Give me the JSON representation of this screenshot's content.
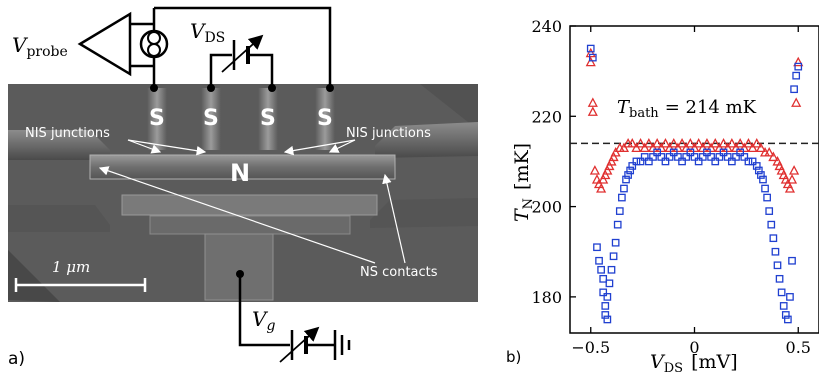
{
  "panel_a": {
    "label": "a)",
    "probe_label_main": "V",
    "probe_label_sub": "probe",
    "vds_label_main": "V",
    "vds_label_sub": "DS",
    "vg_label_main": "V",
    "vg_label_sub": "g",
    "contact_label": "S",
    "island_label": "N",
    "nis_left": "NIS junctions",
    "nis_right": "NIS junctions",
    "ns_contacts": "NS contacts",
    "scale_bar": "1 μm"
  },
  "panel_b": {
    "label": "b)",
    "annotation_main": "T",
    "annotation_sub": "bath",
    "annotation_value": "= 214 mK"
  },
  "chart_data": {
    "type": "scatter",
    "xlabel": "V_DS [mV]",
    "ylabel": "T_N [mK]",
    "xlim": [
      -0.6,
      0.6
    ],
    "ylim": [
      172,
      240
    ],
    "x_ticks": [
      -0.5,
      0,
      0.5
    ],
    "x_tick_labels": [
      "−0.5",
      "0",
      "0.5"
    ],
    "y_ticks": [
      180,
      200,
      220,
      240
    ],
    "y_tick_labels": [
      "180",
      "200",
      "220",
      "240"
    ],
    "reference_line": {
      "value": 214,
      "style": "dashed",
      "color": "#222222"
    },
    "series": [
      {
        "marker": "triangle",
        "color": "#e03030",
        "points": [
          [
            -0.5,
            234
          ],
          [
            -0.5,
            232
          ],
          [
            -0.49,
            223
          ],
          [
            -0.49,
            221
          ],
          [
            -0.48,
            208
          ],
          [
            -0.47,
            206
          ],
          [
            -0.46,
            205
          ],
          [
            -0.45,
            204
          ],
          [
            -0.44,
            206
          ],
          [
            -0.43,
            207
          ],
          [
            -0.42,
            208
          ],
          [
            -0.41,
            209
          ],
          [
            -0.4,
            210
          ],
          [
            -0.39,
            211
          ],
          [
            -0.38,
            212
          ],
          [
            -0.36,
            213
          ],
          [
            -0.34,
            213
          ],
          [
            -0.32,
            214
          ],
          [
            -0.3,
            214
          ],
          [
            -0.28,
            213
          ],
          [
            -0.26,
            214
          ],
          [
            -0.24,
            213
          ],
          [
            -0.22,
            214
          ],
          [
            -0.2,
            213
          ],
          [
            -0.18,
            214
          ],
          [
            -0.16,
            213
          ],
          [
            -0.14,
            214
          ],
          [
            -0.12,
            213
          ],
          [
            -0.1,
            214
          ],
          [
            -0.08,
            213
          ],
          [
            -0.06,
            214
          ],
          [
            -0.04,
            213
          ],
          [
            -0.02,
            214
          ],
          [
            0,
            213
          ],
          [
            0.02,
            214
          ],
          [
            0.04,
            213
          ],
          [
            0.06,
            214
          ],
          [
            0.08,
            213
          ],
          [
            0.1,
            214
          ],
          [
            0.12,
            213
          ],
          [
            0.14,
            214
          ],
          [
            0.16,
            213
          ],
          [
            0.18,
            214
          ],
          [
            0.2,
            213
          ],
          [
            0.22,
            214
          ],
          [
            0.24,
            213
          ],
          [
            0.26,
            214
          ],
          [
            0.28,
            213
          ],
          [
            0.3,
            214
          ],
          [
            0.32,
            213
          ],
          [
            0.34,
            212
          ],
          [
            0.36,
            212
          ],
          [
            0.38,
            211
          ],
          [
            0.4,
            210
          ],
          [
            0.41,
            209
          ],
          [
            0.42,
            208
          ],
          [
            0.43,
            207
          ],
          [
            0.44,
            206
          ],
          [
            0.45,
            205
          ],
          [
            0.46,
            204
          ],
          [
            0.47,
            206
          ],
          [
            0.48,
            208
          ],
          [
            0.49,
            223
          ],
          [
            0.5,
            232
          ]
        ]
      },
      {
        "marker": "square",
        "color": "#2040d0",
        "points": [
          [
            -0.5,
            235
          ],
          [
            -0.49,
            233
          ],
          [
            -0.47,
            191
          ],
          [
            -0.46,
            188
          ],
          [
            -0.45,
            186
          ],
          [
            -0.44,
            184
          ],
          [
            -0.44,
            181
          ],
          [
            -0.43,
            178
          ],
          [
            -0.43,
            176
          ],
          [
            -0.42,
            175
          ],
          [
            -0.42,
            180
          ],
          [
            -0.41,
            183
          ],
          [
            -0.4,
            186
          ],
          [
            -0.39,
            189
          ],
          [
            -0.38,
            192
          ],
          [
            -0.37,
            196
          ],
          [
            -0.36,
            199
          ],
          [
            -0.35,
            202
          ],
          [
            -0.34,
            204
          ],
          [
            -0.33,
            206
          ],
          [
            -0.32,
            207
          ],
          [
            -0.31,
            208
          ],
          [
            -0.3,
            209
          ],
          [
            -0.28,
            210
          ],
          [
            -0.26,
            210
          ],
          [
            -0.24,
            211
          ],
          [
            -0.22,
            210
          ],
          [
            -0.2,
            211
          ],
          [
            -0.18,
            212
          ],
          [
            -0.16,
            211
          ],
          [
            -0.14,
            210
          ],
          [
            -0.12,
            211
          ],
          [
            -0.1,
            212
          ],
          [
            -0.08,
            211
          ],
          [
            -0.06,
            210
          ],
          [
            -0.04,
            211
          ],
          [
            -0.02,
            212
          ],
          [
            0,
            211
          ],
          [
            0.02,
            210
          ],
          [
            0.04,
            211
          ],
          [
            0.06,
            212
          ],
          [
            0.08,
            211
          ],
          [
            0.1,
            210
          ],
          [
            0.12,
            211
          ],
          [
            0.14,
            212
          ],
          [
            0.16,
            211
          ],
          [
            0.18,
            210
          ],
          [
            0.2,
            211
          ],
          [
            0.22,
            212
          ],
          [
            0.24,
            211
          ],
          [
            0.26,
            210
          ],
          [
            0.28,
            210
          ],
          [
            0.3,
            209
          ],
          [
            0.31,
            208
          ],
          [
            0.32,
            207
          ],
          [
            0.33,
            206
          ],
          [
            0.34,
            204
          ],
          [
            0.35,
            202
          ],
          [
            0.36,
            199
          ],
          [
            0.37,
            196
          ],
          [
            0.38,
            193
          ],
          [
            0.39,
            190
          ],
          [
            0.4,
            187
          ],
          [
            0.41,
            184
          ],
          [
            0.42,
            181
          ],
          [
            0.43,
            178
          ],
          [
            0.44,
            176
          ],
          [
            0.45,
            175
          ],
          [
            0.46,
            180
          ],
          [
            0.47,
            188
          ],
          [
            0.48,
            226
          ],
          [
            0.49,
            229
          ],
          [
            0.5,
            231
          ]
        ]
      }
    ]
  }
}
